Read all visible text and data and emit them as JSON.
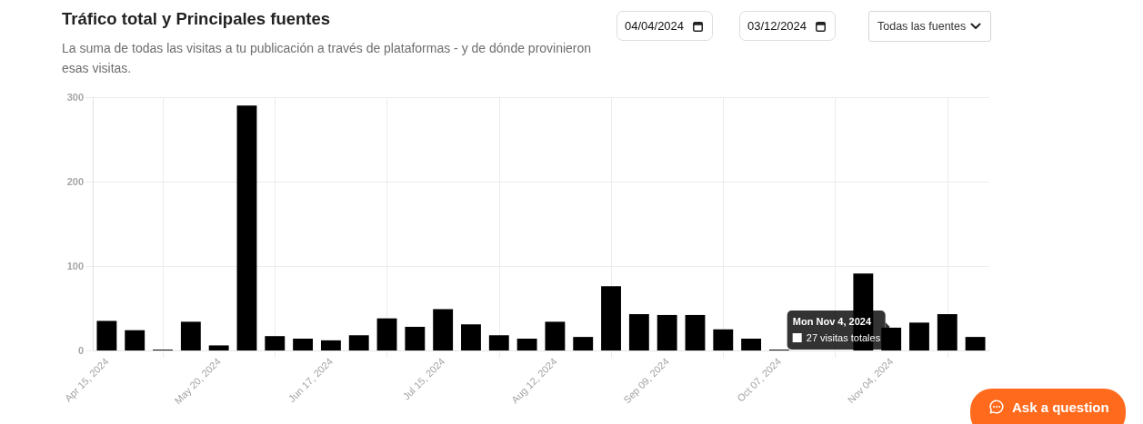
{
  "chart_data": {
    "type": "bar",
    "title": "Tráfico total y Principales fuentes",
    "subtitle": "La suma de todas las visitas a tu publicación a través de plataformas - y de dónde provinieron esas visitas.",
    "categories": [
      "Apr 15, 2024",
      null,
      null,
      null,
      "May 20, 2024",
      null,
      null,
      null,
      "Jun 17, 2024",
      null,
      null,
      null,
      "Jul 15, 2024",
      null,
      null,
      null,
      "Aug 12, 2024",
      null,
      null,
      null,
      "Sep 09, 2024",
      null,
      null,
      null,
      "Oct 07, 2024",
      null,
      null,
      null,
      "Nov 04, 2024",
      null,
      null,
      null
    ],
    "values": [
      35,
      24,
      1,
      34,
      6,
      290,
      17,
      14,
      12,
      18,
      38,
      28,
      49,
      31,
      18,
      14,
      34,
      16,
      76,
      43,
      42,
      42,
      25,
      14,
      1,
      null,
      null,
      91,
      27,
      33,
      43,
      16
    ],
    "color": "#000000",
    "ylim": [
      0,
      300
    ],
    "yticks": [
      0,
      100,
      200,
      300
    ],
    "grid": true,
    "annotations": [
      "04/04/2024",
      "03/12/2024",
      "Todas las fuentes",
      {
        "text": "Mon Nov 4, 2024",
        "x": "Nov 04, 2024",
        "y": 27
      },
      {
        "text": "27 visitas totales",
        "x": "Nov 04, 2024",
        "y": 27
      },
      "Ask a question"
    ]
  }
}
